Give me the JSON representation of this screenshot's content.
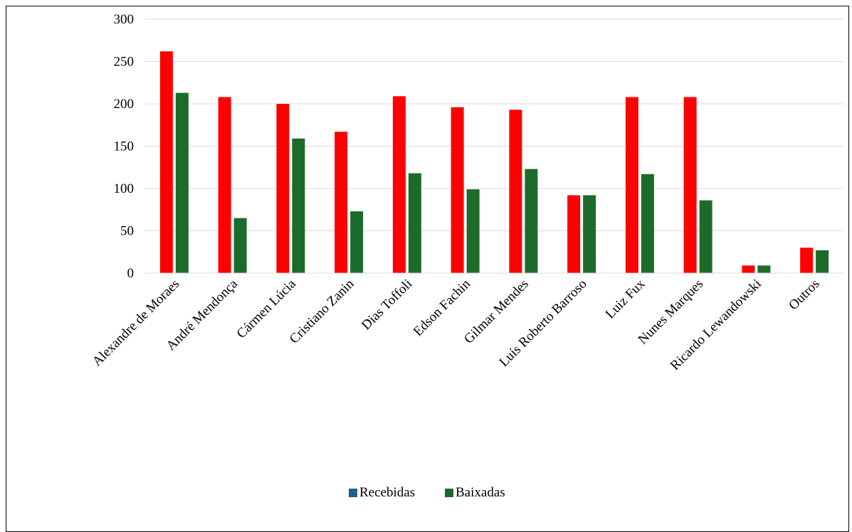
{
  "chart_data": {
    "type": "bar",
    "categories": [
      "Alexandre de Moraes",
      "André Mendonça",
      "Cármen Lúcia",
      "Cristiano Zanin",
      "Dias Toffoli",
      "Edson Fachin",
      "Gilmar Mendes",
      "Luís Roberto Barroso",
      "Luiz Fux",
      "Nunes Marques",
      "Ricardo Lewandowski",
      "Outros"
    ],
    "series": [
      {
        "name": "Recebidas",
        "legend_color": "#1f5f8b",
        "bar_color": "#ff0000",
        "values": [
          262,
          208,
          200,
          167,
          209,
          196,
          193,
          92,
          208,
          208,
          9,
          30
        ]
      },
      {
        "name": "Baixadas",
        "legend_color": "#1d6b2a",
        "bar_color": "#1d6b2a",
        "values": [
          213,
          65,
          159,
          73,
          118,
          99,
          123,
          92,
          117,
          86,
          9,
          27
        ]
      }
    ],
    "ylim": [
      0,
      300
    ],
    "yticks": [
      0,
      50,
      100,
      150,
      200,
      250,
      300
    ],
    "grid": true,
    "legend_position": "bottom"
  }
}
